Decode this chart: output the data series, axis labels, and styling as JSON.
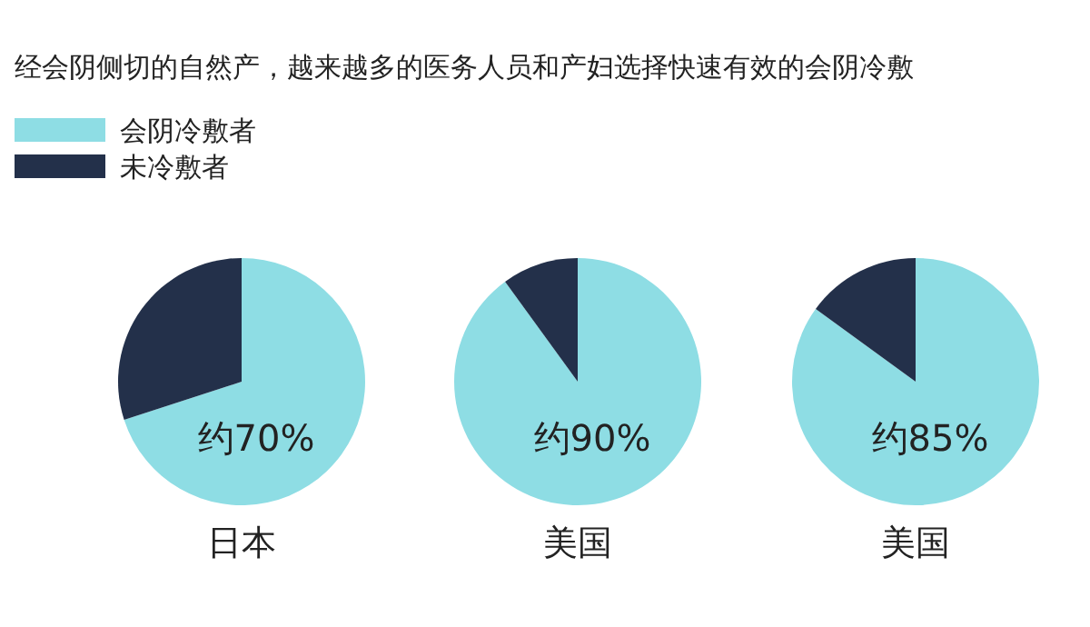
{
  "chart_data": [
    {
      "type": "pie",
      "title": "经会阴侧切的自然产，越来越多的医务人员和产妇选择快速有效的会阴冷敷",
      "legend": "top left",
      "categories": [
        "会阴冷敷者",
        "未冷敷者"
      ],
      "values": [
        70,
        30
      ],
      "colors": [
        "#8edde4",
        "#23304a"
      ],
      "xlabel": "日本",
      "annotations": [
        "约70%"
      ]
    },
    {
      "type": "pie",
      "values": [
        90,
        10
      ],
      "colors": [
        "#8edde4",
        "#23304a"
      ],
      "xlabel": "美国",
      "annotations": [
        "约90%"
      ]
    },
    {
      "type": "pie",
      "values": [
        85,
        15
      ],
      "colors": [
        "#8edde4",
        "#23304a"
      ],
      "xlabel": "美国",
      "annotations": [
        "约85%"
      ]
    }
  ]
}
